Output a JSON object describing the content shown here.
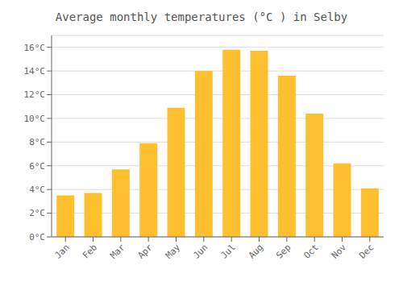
{
  "chart_data": {
    "type": "bar",
    "title": "Average monthly temperatures (°C ) in Selby",
    "categories": [
      "Jan",
      "Feb",
      "Mar",
      "Apr",
      "May",
      "Jun",
      "Jul",
      "Aug",
      "Sep",
      "Oct",
      "Nov",
      "Dec"
    ],
    "values": [
      3.5,
      3.7,
      5.7,
      7.9,
      10.9,
      14.0,
      15.8,
      15.7,
      13.6,
      10.4,
      6.2,
      4.1
    ],
    "color": "#FFC030",
    "ylim": [
      0,
      17
    ],
    "yticks": [
      {
        "value": 0,
        "label": "0°C"
      },
      {
        "value": 2,
        "label": "2°C"
      },
      {
        "value": 4,
        "label": "4°C"
      },
      {
        "value": 6,
        "label": "6°C"
      },
      {
        "value": 8,
        "label": "8°C"
      },
      {
        "value": 10,
        "label": "10°C"
      },
      {
        "value": 12,
        "label": "12°C"
      },
      {
        "value": 14,
        "label": "14°C"
      },
      {
        "value": 16,
        "label": "16°C"
      }
    ],
    "grid": true
  }
}
